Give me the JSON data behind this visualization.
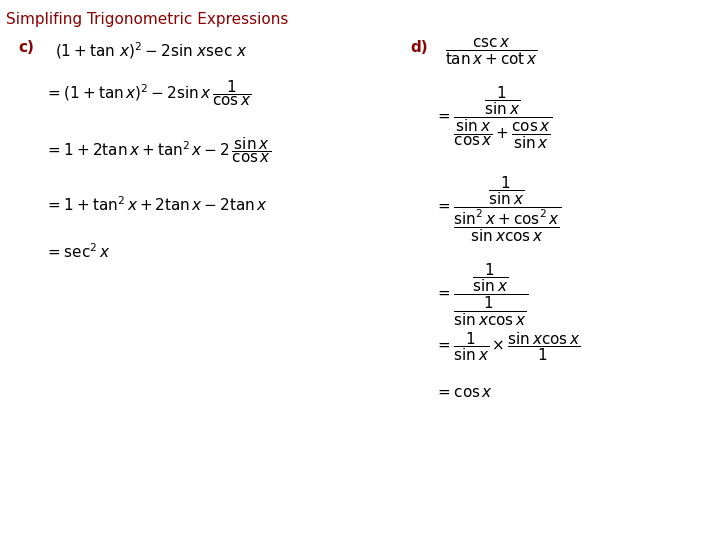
{
  "title": "Simplifing Trigonometric Expressions",
  "title_color": "#8B0000",
  "title_fontsize": 11,
  "bg_color": "#ffffff",
  "label_c": "c)",
  "label_d": "d)",
  "label_color": "#8B0000",
  "math_fontsize": 11,
  "fig_width": 7.2,
  "fig_height": 5.4,
  "dpi": 100
}
